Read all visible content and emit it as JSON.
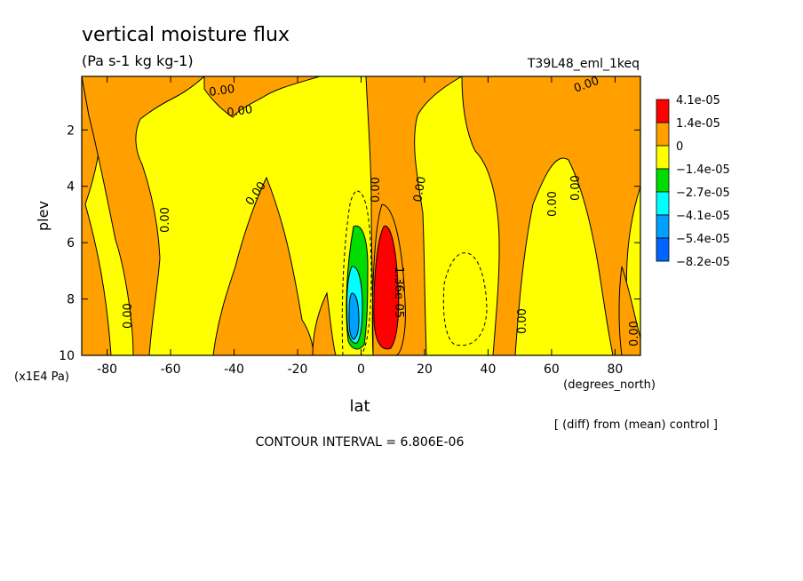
{
  "chart_data": {
    "type": "heatmap",
    "title": "vertical moisture flux",
    "subtitle": "(Pa s-1 kg kg-1)",
    "experiment": "T39L48_eml_1keq",
    "xlabel": "lat",
    "x_unit": "(degrees_north)",
    "ylabel": "plev",
    "y_unit": "(x1E4 Pa)",
    "xlim": [
      -88,
      88
    ],
    "ylim": [
      10,
      0.1
    ],
    "x_ticks": [
      "-80",
      "-60",
      "-40",
      "-20",
      "0",
      "20",
      "40",
      "60",
      "80"
    ],
    "y_ticks": [
      "2",
      "4",
      "6",
      "8",
      "10"
    ],
    "footnote": "CONTOUR INTERVAL = 6.806E-06",
    "note": "[ (diff) from (mean) control ]",
    "contour_labels": [
      "0.00",
      "0.00",
      "0.00",
      "0.00",
      "0.00",
      "0.00",
      "0.00",
      "0.00",
      "0.00",
      "0.00",
      "0.00",
      "0.00",
      "1.36e-05"
    ],
    "legend": {
      "labels": [
        "4.1e-05",
        "1.4e-05",
        "0",
        "−1.4e-05",
        "−2.7e-05",
        "−4.1e-05",
        "−5.4e-05",
        "−8.2e-05"
      ],
      "colors": [
        "#ff0000",
        "#ffa000",
        "#ffff00",
        "#00dc00",
        "#00ffff",
        "#00a0ff",
        "#0064ff"
      ]
    }
  }
}
